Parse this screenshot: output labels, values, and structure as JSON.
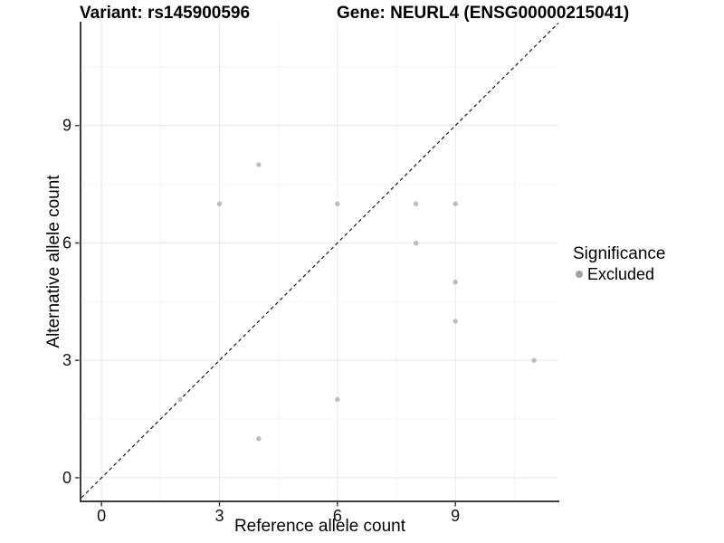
{
  "titles": {
    "variant": "Variant: rs145900596",
    "gene": "Gene: NEURL4 (ENSG00000215041)"
  },
  "legend": {
    "title": "Significance",
    "items": [
      {
        "label": "Excluded",
        "color": "#a3a3a3"
      }
    ]
  },
  "chart_data": {
    "type": "scatter",
    "title": "Variant: rs145900596    Gene: NEURL4 (ENSG00000215041)",
    "xlabel": "Reference allele count",
    "ylabel": "Alternative allele count",
    "xlim": [
      -0.51,
      11.62
    ],
    "ylim": [
      -0.58,
      11.63
    ],
    "x_major_ticks": [
      0,
      3,
      6,
      9
    ],
    "y_major_ticks": [
      0,
      3,
      6,
      9
    ],
    "x_tick_labels": [
      "0",
      "3",
      "6",
      "9"
    ],
    "y_tick_labels": [
      "0",
      "3",
      "6",
      "9"
    ],
    "x_minor_ticks": [
      1.5,
      4.5,
      7.5,
      10.5
    ],
    "y_minor_ticks": [
      1.5,
      4.5,
      7.5,
      10.5
    ],
    "grid": true,
    "legend_position": "right",
    "series": [
      {
        "name": "Excluded",
        "color": "#bdbdbd",
        "points": [
          [
            4,
            8
          ],
          [
            3,
            7
          ],
          [
            6,
            7
          ],
          [
            8,
            7
          ],
          [
            9,
            7
          ],
          [
            8,
            6
          ],
          [
            9,
            5
          ],
          [
            9,
            4
          ],
          [
            11,
            3
          ],
          [
            2,
            2
          ],
          [
            6,
            2
          ],
          [
            4,
            1
          ]
        ]
      }
    ],
    "reference_line": {
      "type": "identity",
      "equation": "y = x",
      "style": "dashed"
    },
    "colors": {
      "grid_major": "#e8e8e8",
      "grid_minor": "#f4f4f4",
      "axis": "#3c3c3c",
      "tick": "#333333",
      "tick_label": "#111111",
      "dashed_line": "#1a1a1a",
      "point": "#bdbdbd"
    }
  }
}
